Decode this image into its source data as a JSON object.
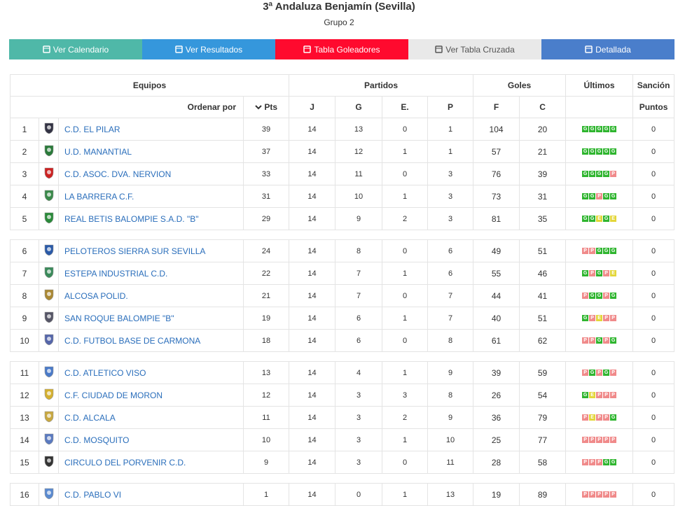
{
  "header": {
    "title": "3ª Andaluza Benjamín (Sevilla)",
    "subtitle": "Grupo 2"
  },
  "buttons": [
    {
      "label": "Ver Calendario",
      "color": "#4fb8a8"
    },
    {
      "label": "Ver Resultados",
      "color": "#3597dc"
    },
    {
      "label": "Tabla Goleadores",
      "color": "#ff0a2e"
    },
    {
      "label": "Ver Tabla Cruzada",
      "color": "#e9e9e9"
    },
    {
      "label": "Detallada",
      "color": "#4a7ecb"
    }
  ],
  "table": {
    "header_top": [
      "Equipos",
      "Partidos",
      "Goles",
      "Últimos",
      "Sanción"
    ],
    "header_sub": [
      "Ordenar por",
      "Pts",
      "J",
      "G",
      "E.",
      "P",
      "F",
      "C",
      "Puntos"
    ],
    "groups": [
      [
        [
          1,
          "C.D. EL PILAR",
          39,
          14,
          13,
          0,
          1,
          104,
          20,
          [
            "G",
            "G",
            "G",
            "G",
            "G"
          ],
          0
        ],
        [
          2,
          "U.D. MANANTIAL",
          37,
          14,
          12,
          1,
          1,
          57,
          21,
          [
            "G",
            "G",
            "G",
            "G",
            "G"
          ],
          0
        ],
        [
          3,
          "C.D. ASOC. DVA. NERVION",
          33,
          14,
          11,
          0,
          3,
          76,
          39,
          [
            "G",
            "G",
            "G",
            "G",
            "P"
          ],
          0
        ],
        [
          4,
          "LA BARRERA C.F.",
          31,
          14,
          10,
          1,
          3,
          73,
          31,
          [
            "G",
            "G",
            "P",
            "G",
            "G"
          ],
          0
        ],
        [
          5,
          "REAL BETIS BALOMPIE S.A.D. \"B\"",
          29,
          14,
          9,
          2,
          3,
          81,
          35,
          [
            "G",
            "G",
            "E",
            "G",
            "E"
          ],
          0
        ]
      ],
      [
        [
          6,
          "PELOTEROS SIERRA SUR SEVILLA",
          24,
          14,
          8,
          0,
          6,
          49,
          51,
          [
            "P",
            "P",
            "G",
            "G",
            "G"
          ],
          0
        ],
        [
          7,
          "ESTEPA INDUSTRIAL C.D.",
          22,
          14,
          7,
          1,
          6,
          55,
          46,
          [
            "G",
            "P",
            "G",
            "P",
            "E"
          ],
          0
        ],
        [
          8,
          "ALCOSA POLID.",
          21,
          14,
          7,
          0,
          7,
          44,
          41,
          [
            "P",
            "G",
            "G",
            "P",
            "G"
          ],
          0
        ],
        [
          9,
          "SAN ROQUE BALOMPIE \"B\"",
          19,
          14,
          6,
          1,
          7,
          40,
          51,
          [
            "G",
            "P",
            "E",
            "P",
            "P"
          ],
          0
        ],
        [
          10,
          "C.D. FUTBOL BASE DE CARMONA",
          18,
          14,
          6,
          0,
          8,
          61,
          62,
          [
            "P",
            "P",
            "G",
            "P",
            "G"
          ],
          0
        ]
      ],
      [
        [
          11,
          "C.D. ATLETICO VISO",
          13,
          14,
          4,
          1,
          9,
          39,
          59,
          [
            "P",
            "G",
            "P",
            "G",
            "P"
          ],
          0
        ],
        [
          12,
          "C.F. CIUDAD DE MORON",
          12,
          14,
          3,
          3,
          8,
          26,
          54,
          [
            "G",
            "E",
            "P",
            "P",
            "P"
          ],
          0
        ],
        [
          13,
          "C.D. ALCALA",
          11,
          14,
          3,
          2,
          9,
          36,
          79,
          [
            "P",
            "E",
            "P",
            "P",
            "G"
          ],
          0
        ],
        [
          14,
          "C.D. MOSQUITO",
          10,
          14,
          3,
          1,
          10,
          25,
          77,
          [
            "P",
            "P",
            "P",
            "P",
            "P"
          ],
          0
        ],
        [
          15,
          "CIRCULO DEL PORVENIR C.D.",
          9,
          14,
          3,
          0,
          11,
          28,
          58,
          [
            "P",
            "P",
            "P",
            "G",
            "G"
          ],
          0
        ]
      ],
      [
        [
          16,
          "C.D. PABLO VI",
          1,
          14,
          0,
          1,
          13,
          19,
          89,
          [
            "P",
            "P",
            "P",
            "P",
            "P"
          ],
          0
        ]
      ]
    ]
  }
}
